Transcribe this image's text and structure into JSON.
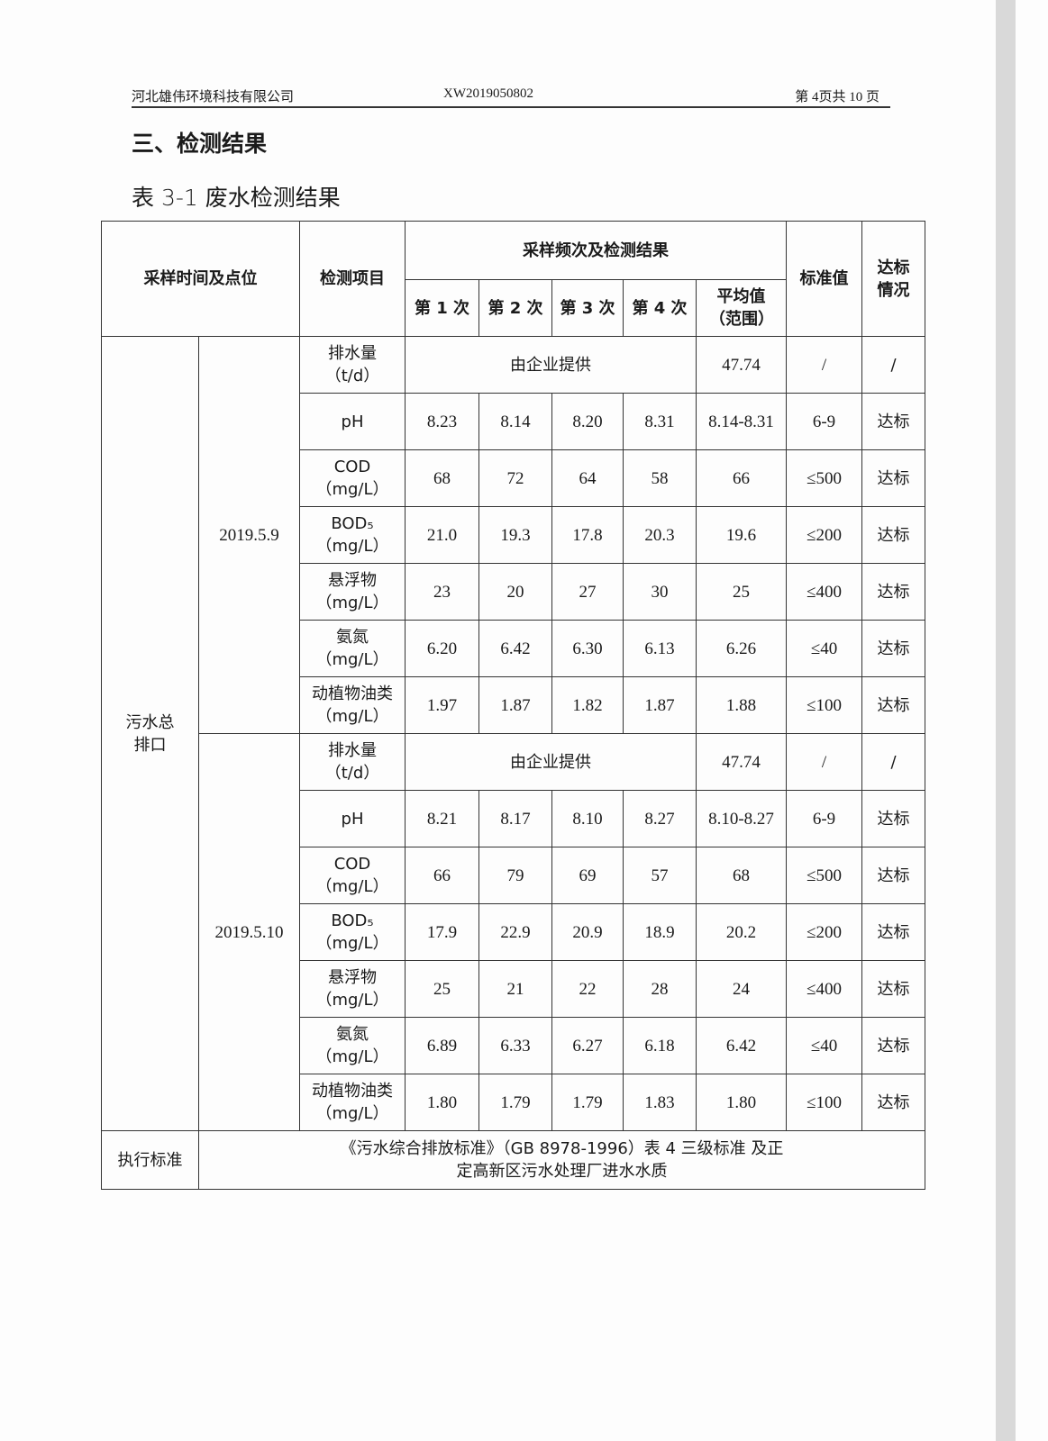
{
  "header": {
    "company": "河北雄伟环境科技有限公司",
    "report_no": "XW2019050802",
    "page": "第 4页共 10 页"
  },
  "section_title": "三、检测结果",
  "table_caption": "表 3-1 废水检测结果",
  "table": {
    "headers": {
      "time_point": "采样时间及点位",
      "item": "检测项目",
      "group": "采样频次及检测结果",
      "runs": [
        "第 1 次",
        "第 2 次",
        "第 3 次",
        "第 4 次"
      ],
      "avg": "平均值（范围）",
      "standard": "标准值",
      "status": "达标情况"
    },
    "location": "污水总排口",
    "groups": [
      {
        "date": "2019.5.9",
        "rows": [
          {
            "item": "排水量（t/d）",
            "merged": "由企业提供",
            "avg": "47.74",
            "standard": "/",
            "status": "/"
          },
          {
            "item": "pH",
            "values": [
              "8.23",
              "8.14",
              "8.20",
              "8.31"
            ],
            "avg": "8.14-8.31",
            "standard": "6-9",
            "status": "达标"
          },
          {
            "item": "COD（mg/L）",
            "values": [
              "68",
              "72",
              "64",
              "58"
            ],
            "avg": "66",
            "standard": "≤500",
            "status": "达标"
          },
          {
            "item": "BOD₅（mg/L）",
            "values": [
              "21.0",
              "19.3",
              "17.8",
              "20.3"
            ],
            "avg": "19.6",
            "standard": "≤200",
            "status": "达标"
          },
          {
            "item": "悬浮物（mg/L）",
            "values": [
              "23",
              "20",
              "27",
              "30"
            ],
            "avg": "25",
            "standard": "≤400",
            "status": "达标"
          },
          {
            "item": "氨氮（mg/L）",
            "values": [
              "6.20",
              "6.42",
              "6.30",
              "6.13"
            ],
            "avg": "6.26",
            "standard": "≤40",
            "status": "达标"
          },
          {
            "item": "动植物油类（mg/L）",
            "values": [
              "1.97",
              "1.87",
              "1.82",
              "1.87"
            ],
            "avg": "1.88",
            "standard": "≤100",
            "status": "达标"
          }
        ]
      },
      {
        "date": "2019.5.10",
        "rows": [
          {
            "item": "排水量（t/d）",
            "merged": "由企业提供",
            "avg": "47.74",
            "standard": "/",
            "status": "/"
          },
          {
            "item": "pH",
            "values": [
              "8.21",
              "8.17",
              "8.10",
              "8.27"
            ],
            "avg": "8.10-8.27",
            "standard": "6-9",
            "status": "达标"
          },
          {
            "item": "COD（mg/L）",
            "values": [
              "66",
              "79",
              "69",
              "57"
            ],
            "avg": "68",
            "standard": "≤500",
            "status": "达标"
          },
          {
            "item": "BOD₅（mg/L）",
            "values": [
              "17.9",
              "22.9",
              "20.9",
              "18.9"
            ],
            "avg": "20.2",
            "standard": "≤200",
            "status": "达标"
          },
          {
            "item": "悬浮物（mg/L）",
            "values": [
              "25",
              "21",
              "22",
              "28"
            ],
            "avg": "24",
            "standard": "≤400",
            "status": "达标"
          },
          {
            "item": "氨氮（mg/L）",
            "values": [
              "6.89",
              "6.33",
              "6.27",
              "6.18"
            ],
            "avg": "6.42",
            "standard": "≤40",
            "status": "达标"
          },
          {
            "item": "动植物油类（mg/L）",
            "values": [
              "1.80",
              "1.79",
              "1.79",
              "1.83"
            ],
            "avg": "1.80",
            "standard": "≤100",
            "status": "达标"
          }
        ]
      }
    ],
    "footer": {
      "label": "执行标准",
      "text": "《污水综合排放标准》（GB 8978-1996）表 4 三级标准 及正定高新区污水处理厂进水水质"
    }
  }
}
